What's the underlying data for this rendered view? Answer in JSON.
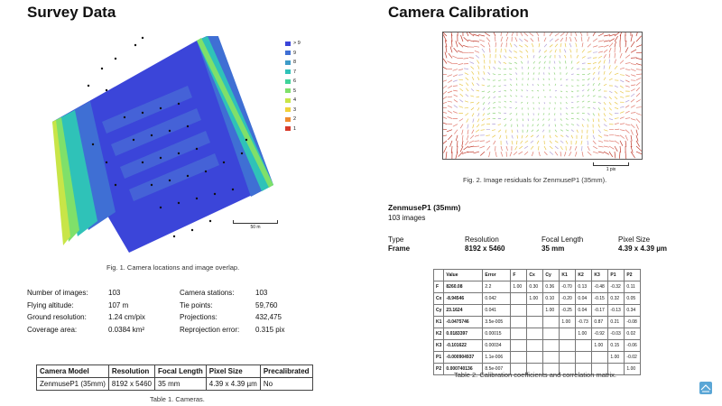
{
  "survey": {
    "title": "Survey Data",
    "legend": [
      {
        "label": "> 9",
        "color": "#3b45d9"
      },
      {
        "label": "9",
        "color": "#3f6fd4"
      },
      {
        "label": "8",
        "color": "#3e9bc8"
      },
      {
        "label": "7",
        "color": "#2fc2b8"
      },
      {
        "label": "6",
        "color": "#3fd39a"
      },
      {
        "label": "5",
        "color": "#7fe06a"
      },
      {
        "label": "4",
        "color": "#c8e548"
      },
      {
        "label": "3",
        "color": "#f0d23a"
      },
      {
        "label": "2",
        "color": "#f08a2e"
      },
      {
        "label": "1",
        "color": "#d83a2a"
      }
    ],
    "scale_label": "50 m",
    "fig_caption": "Fig. 1. Camera locations and image overlap.",
    "stats_left": [
      {
        "label": "Number of images:",
        "value": "103"
      },
      {
        "label": "Flying altitude:",
        "value": "107 m"
      },
      {
        "label": "Ground resolution:",
        "value": "1.24 cm/pix"
      },
      {
        "label": "Coverage area:",
        "value": "0.0384 km²"
      }
    ],
    "stats_right": [
      {
        "label": "Camera stations:",
        "value": "103"
      },
      {
        "label": "Tie points:",
        "value": "59,760"
      },
      {
        "label": "Projections:",
        "value": "432,475"
      },
      {
        "label": "Reprojection error:",
        "value": "0.315 pix"
      }
    ],
    "cameras_table": {
      "headers": [
        "Camera Model",
        "Resolution",
        "Focal Length",
        "Pixel Size",
        "Precalibrated"
      ],
      "rows": [
        [
          "ZenmuseP1 (35mm)",
          "8192 x 5460",
          "35 mm",
          "4.39 x 4.39 µm",
          "No"
        ]
      ]
    },
    "table_caption": "Table 1. Cameras."
  },
  "calibration": {
    "title": "Camera Calibration",
    "scale_label": "1 pix",
    "fig_caption": "Fig. 2. Image residuals for ZenmuseP1 (35mm).",
    "camera_name": "ZenmuseP1 (35mm)",
    "images_count": "103 images",
    "specs": [
      {
        "label": "Type",
        "value": "Frame"
      },
      {
        "label": "Resolution",
        "value": "8192 x 5460"
      },
      {
        "label": "Focal Length",
        "value": "35 mm"
      },
      {
        "label": "Pixel Size",
        "value": "4.39 x 4.39 µm"
      }
    ],
    "coeff_table": {
      "headers": [
        "",
        "Value",
        "Error",
        "F",
        "Cx",
        "Cy",
        "K1",
        "K2",
        "K3",
        "P1",
        "P2"
      ],
      "rows": [
        [
          "F",
          "8260.08",
          "2.2",
          "1.00",
          "0.30",
          "0.36",
          "-0.70",
          "0.13",
          "-0.48",
          "-0.32",
          "0.11"
        ],
        [
          "Cx",
          "-8.94546",
          "0.042",
          "",
          "1.00",
          "0.10",
          "-0.20",
          "0.04",
          "-0.15",
          "0.32",
          "0.05"
        ],
        [
          "Cy",
          "23.1624",
          "0.041",
          "",
          "",
          "1.00",
          "-0.25",
          "0.04",
          "-0.17",
          "-0.13",
          "0.34"
        ],
        [
          "K1",
          "-0.0475746",
          "3.5e-005",
          "",
          "",
          "",
          "1.00",
          "-0.73",
          "0.87",
          "0.21",
          "-0.08"
        ],
        [
          "K2",
          "0.0183397",
          "0.00015",
          "",
          "",
          "",
          "",
          "1.00",
          "-0.92",
          "-0.03",
          "0.02"
        ],
        [
          "K3",
          "-0.101622",
          "0.00034",
          "",
          "",
          "",
          "",
          "",
          "1.00",
          "0.15",
          "-0.06"
        ],
        [
          "P1",
          "-0.000904937",
          "1.1e-006",
          "",
          "",
          "",
          "",
          "",
          "",
          "1.00",
          "-0.02"
        ],
        [
          "P2",
          "0.000740136",
          "8.5e-007",
          "",
          "",
          "",
          "",
          "",
          "",
          "",
          "1.00"
        ]
      ]
    },
    "table_caption": "Table 2. Calibration coefficients and correlation matrix."
  }
}
